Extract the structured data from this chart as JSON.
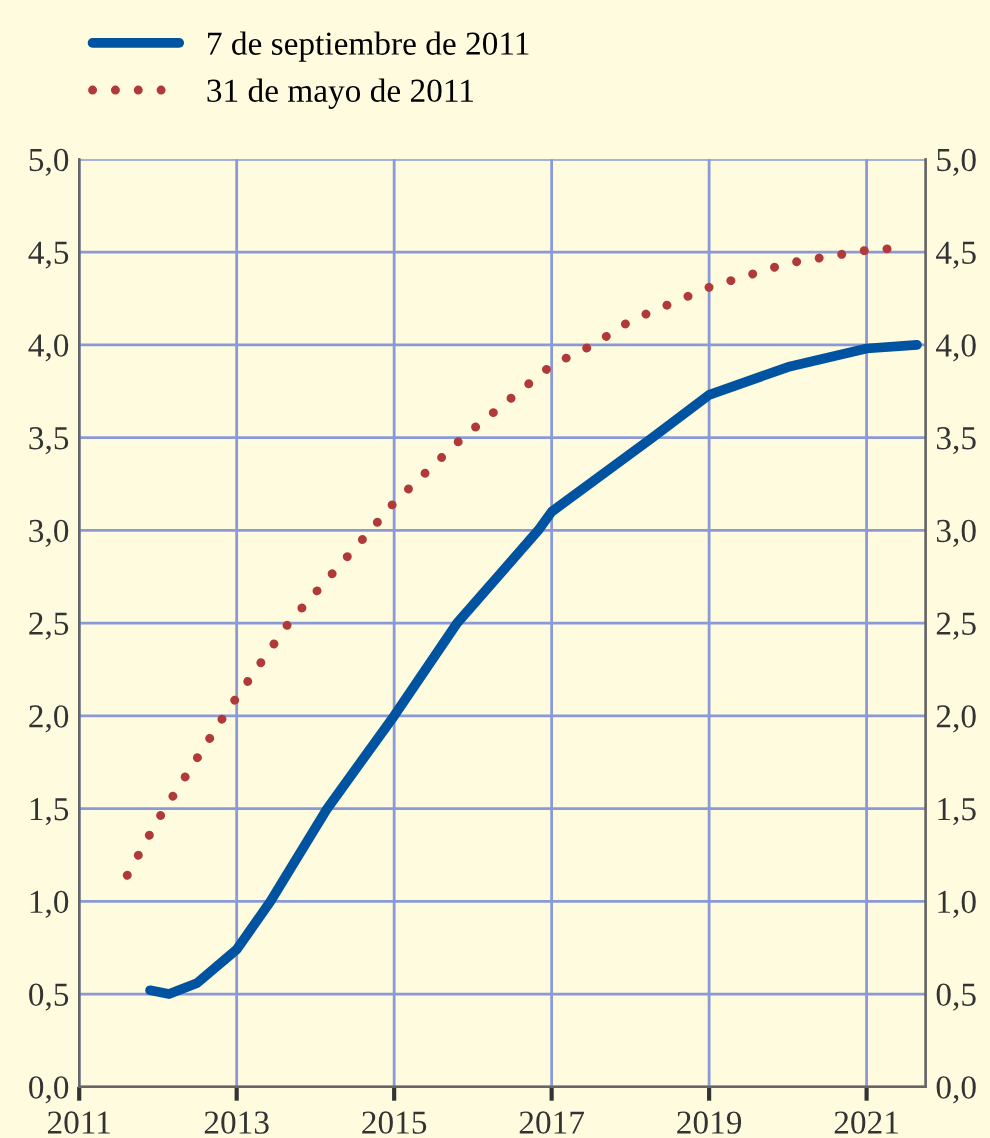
{
  "chart_data": {
    "type": "line",
    "series": [
      {
        "name": "7 de septiembre de 2011",
        "color": "#0053a0",
        "line_style": "solid",
        "x": [
          2011.9,
          2012.14,
          2012.5,
          2013.0,
          2013.43,
          2014.15,
          2015.0,
          2015.8,
          2016.83,
          2017.0,
          2018.28,
          2019.0,
          2020.0,
          2021.0,
          2021.64
        ],
        "values": [
          0.52,
          0.5,
          0.56,
          0.74,
          1.0,
          1.5,
          2.0,
          2.5,
          3.0,
          3.1,
          3.5,
          3.73,
          3.88,
          3.98,
          4.0
        ]
      },
      {
        "name": "31 de mayo de 2011",
        "color": "#b03a3a",
        "line_style": "dotted",
        "x": [
          2011.61,
          2012.0,
          2012.84,
          2013.0,
          2013.66,
          2014.7,
          2015.0,
          2015.87,
          2017.0,
          2017.53,
          2018.0,
          2019.0,
          2020.0,
          2021.0,
          2021.36
        ],
        "values": [
          1.14,
          1.44,
          2.0,
          2.1,
          2.5,
          3.0,
          3.15,
          3.5,
          3.89,
          4.0,
          4.13,
          4.31,
          4.44,
          4.51,
          4.52
        ]
      }
    ],
    "xlim": [
      2011,
      2021.75
    ],
    "xticks": [
      2011,
      2013,
      2015,
      2017,
      2019,
      2021
    ],
    "ylim": [
      0,
      5
    ],
    "yticks": [
      {
        "value": 0,
        "label": "0,0"
      },
      {
        "value": 0.5,
        "label": "0,5"
      },
      {
        "value": 1,
        "label": "1,0"
      },
      {
        "value": 1.5,
        "label": "1,5"
      },
      {
        "value": 2,
        "label": "2,0"
      },
      {
        "value": 2.5,
        "label": "2,5"
      },
      {
        "value": 3,
        "label": "3,0"
      },
      {
        "value": 3.5,
        "label": "3,5"
      },
      {
        "value": 4,
        "label": "4,0"
      },
      {
        "value": 4.5,
        "label": "4,5"
      },
      {
        "value": 5,
        "label": "5,0"
      }
    ],
    "y2lim": [
      0,
      5
    ],
    "y2ticks": [
      {
        "value": 0,
        "label": "0,0"
      },
      {
        "value": 0.5,
        "label": "0,5"
      },
      {
        "value": 1,
        "label": "1,0"
      },
      {
        "value": 1.5,
        "label": "1,5"
      },
      {
        "value": 2,
        "label": "2,0"
      },
      {
        "value": 2.5,
        "label": "2,5"
      },
      {
        "value": 3,
        "label": "3,0"
      },
      {
        "value": 3.5,
        "label": "3,5"
      },
      {
        "value": 4,
        "label": "4,0"
      },
      {
        "value": 4.5,
        "label": "4,5"
      },
      {
        "value": 5,
        "label": "5,0"
      }
    ],
    "grid": true,
    "legend": "top left",
    "marker": "none"
  }
}
